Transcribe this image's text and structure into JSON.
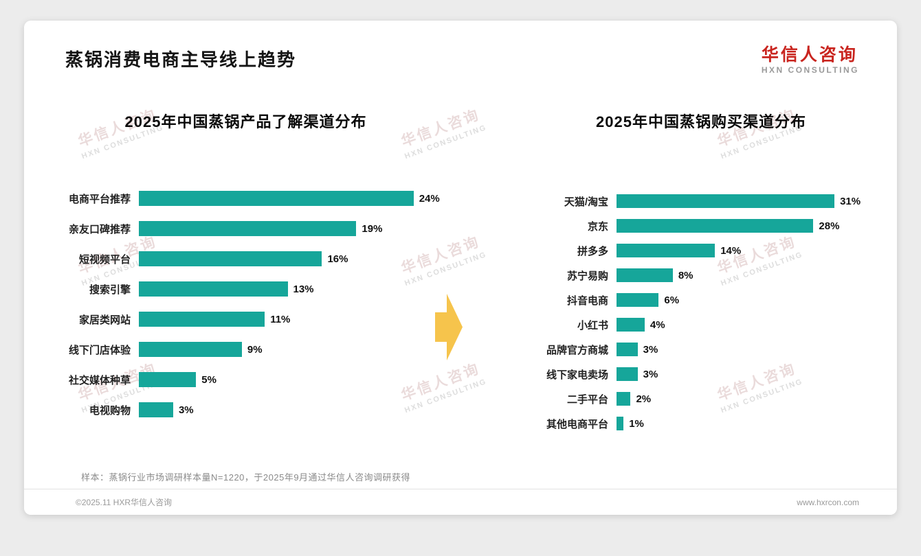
{
  "header": {
    "title": "蒸锅消费电商主导线上趋势"
  },
  "logo": {
    "name": "华信人咨询",
    "sub": "HXN CONSULTING"
  },
  "watermark": {
    "line1": "华信人咨询",
    "line2": "HXN CONSULTING"
  },
  "colors": {
    "bar": "#16a69a",
    "arrow": "#f6c44c",
    "logo_red": "#c9251f"
  },
  "chart_data": [
    {
      "type": "bar",
      "orientation": "horizontal",
      "title": "2025年中国蒸锅产品了解渠道分布",
      "categories": [
        "电商平台推荐",
        "亲友口碑推荐",
        "短视频平台",
        "搜索引擎",
        "家居类网站",
        "线下门店体验",
        "社交媒体种草",
        "电视购物"
      ],
      "values": [
        24,
        19,
        16,
        13,
        11,
        9,
        5,
        3
      ],
      "unit": "%",
      "xmax": 26,
      "legend": "none",
      "grid": "off"
    },
    {
      "type": "bar",
      "orientation": "horizontal",
      "title": "2025年中国蒸锅购买渠道分布",
      "categories": [
        "天猫/淘宝",
        "京东",
        "拼多多",
        "苏宁易购",
        "抖音电商",
        "小红书",
        "品牌官方商城",
        "线下家电卖场",
        "二手平台",
        "其他电商平台"
      ],
      "values": [
        31,
        28,
        14,
        8,
        6,
        4,
        3,
        3,
        2,
        1
      ],
      "unit": "%",
      "xmax": 35,
      "legend": "none",
      "grid": "off"
    }
  ],
  "footer": {
    "sample_note": "样本：蒸锅行业市场调研样本量N=1220，于2025年9月通过华信人咨询调研获得",
    "copyright": "©2025.11 HXR华信人咨询",
    "website": "www.hxrcon.com"
  }
}
